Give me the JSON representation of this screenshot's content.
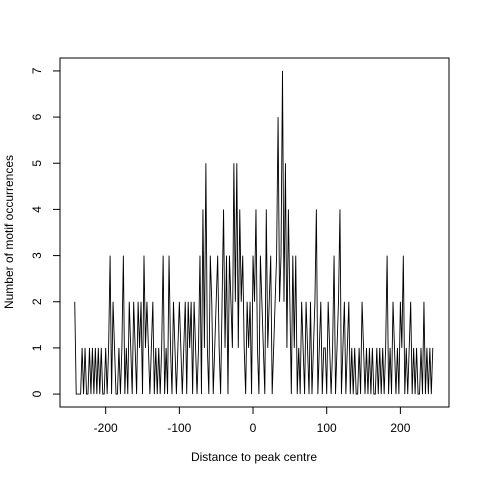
{
  "chart_data": {
    "type": "line",
    "xlabel": "Distance to peak centre",
    "ylabel": "Number of motif occurrences",
    "xlim": [
      -262,
      266
    ],
    "ylim": [
      -0.28,
      7.28
    ],
    "xticks": [
      -200,
      -100,
      0,
      100,
      200
    ],
    "yticks": [
      0,
      1,
      2,
      3,
      4,
      5,
      6,
      7
    ],
    "x": [
      -242,
      -240,
      -238,
      -236,
      -234,
      -232,
      -230,
      -228,
      -226,
      -224,
      -222,
      -220,
      -218,
      -216,
      -214,
      -212,
      -210,
      -208,
      -206,
      -204,
      -202,
      -200,
      -198,
      -196,
      -194,
      -192,
      -190,
      -188,
      -186,
      -184,
      -182,
      -180,
      -178,
      -176,
      -174,
      -172,
      -170,
      -168,
      -166,
      -164,
      -162,
      -160,
      -158,
      -156,
      -154,
      -152,
      -150,
      -148,
      -146,
      -144,
      -142,
      -140,
      -138,
      -136,
      -134,
      -132,
      -130,
      -128,
      -126,
      -124,
      -122,
      -120,
      -118,
      -116,
      -114,
      -112,
      -110,
      -108,
      -106,
      -104,
      -102,
      -100,
      -98,
      -96,
      -94,
      -92,
      -90,
      -88,
      -86,
      -84,
      -82,
      -80,
      -78,
      -76,
      -74,
      -72,
      -70,
      -68,
      -66,
      -64,
      -62,
      -60,
      -58,
      -56,
      -54,
      -52,
      -50,
      -48,
      -46,
      -44,
      -42,
      -40,
      -38,
      -36,
      -34,
      -32,
      -30,
      -28,
      -26,
      -24,
      -22,
      -20,
      -18,
      -16,
      -14,
      -12,
      -10,
      -8,
      -6,
      -4,
      -2,
      0,
      2,
      4,
      6,
      8,
      10,
      12,
      14,
      16,
      18,
      20,
      22,
      24,
      26,
      28,
      30,
      32,
      34,
      36,
      38,
      40,
      42,
      44,
      46,
      48,
      50,
      52,
      54,
      56,
      58,
      60,
      62,
      64,
      66,
      68,
      70,
      72,
      74,
      76,
      78,
      80,
      82,
      84,
      86,
      88,
      90,
      92,
      94,
      96,
      98,
      100,
      102,
      104,
      106,
      108,
      110,
      112,
      114,
      116,
      118,
      120,
      122,
      124,
      126,
      128,
      130,
      132,
      134,
      136,
      138,
      140,
      142,
      144,
      146,
      148,
      150,
      152,
      154,
      156,
      158,
      160,
      162,
      164,
      166,
      168,
      170,
      172,
      174,
      176,
      178,
      180,
      182,
      184,
      186,
      188,
      190,
      192,
      194,
      196,
      198,
      200,
      202,
      204,
      206,
      208,
      210,
      212,
      214,
      216,
      218,
      220,
      222,
      224,
      226,
      228,
      230,
      232,
      234,
      236,
      238,
      240,
      242,
      244
    ],
    "series": [
      {
        "color": "#000000",
        "values": [
          2,
          0,
          0,
          0,
          0,
          1,
          0,
          1,
          0,
          0,
          1,
          0,
          1,
          0,
          1,
          0,
          1,
          0,
          1,
          0,
          0,
          1,
          0,
          1,
          3,
          0,
          2,
          1,
          0,
          0,
          1,
          0,
          1,
          3,
          0,
          1,
          0,
          2,
          1,
          0,
          2,
          1,
          0,
          2,
          1,
          2,
          0,
          3,
          1,
          2,
          1,
          0,
          1,
          2,
          0,
          1,
          0,
          1,
          0,
          1,
          3,
          0,
          1,
          0,
          3,
          1,
          0,
          2,
          1,
          0,
          1,
          2,
          1,
          0,
          1,
          2,
          0,
          2,
          1,
          2,
          0,
          2,
          1,
          0,
          1,
          3,
          0,
          4,
          1,
          5,
          1,
          0,
          3,
          2,
          0,
          1,
          2,
          3,
          1,
          0,
          2,
          4,
          1,
          3,
          0,
          3,
          2,
          1,
          5,
          2,
          5,
          1,
          4,
          2,
          3,
          1,
          0,
          2,
          1,
          2,
          0,
          3,
          2,
          4,
          1,
          0,
          3,
          2,
          1,
          0,
          4,
          1,
          2,
          3,
          0,
          1,
          2,
          3,
          6,
          2,
          3,
          7,
          2,
          5,
          1,
          4,
          2,
          0,
          3,
          1,
          3,
          0,
          1,
          0,
          2,
          1,
          0,
          2,
          1,
          0,
          2,
          0,
          1,
          2,
          4,
          0,
          1,
          2,
          0,
          1,
          1,
          0,
          2,
          1,
          0,
          1,
          3,
          0,
          1,
          2,
          4,
          0,
          1,
          2,
          0,
          1,
          2,
          0,
          1,
          0,
          1,
          0,
          0,
          1,
          0,
          2,
          1,
          0,
          1,
          0,
          1,
          0,
          1,
          0,
          0,
          1,
          0,
          1,
          0,
          1,
          0,
          1,
          3,
          0,
          1,
          0,
          2,
          1,
          0,
          1,
          0,
          2,
          1,
          3,
          0,
          1,
          0,
          1,
          2,
          0,
          1,
          0,
          1,
          0,
          0,
          1,
          0,
          2,
          0,
          1,
          0,
          1,
          0,
          1
        ]
      }
    ]
  }
}
